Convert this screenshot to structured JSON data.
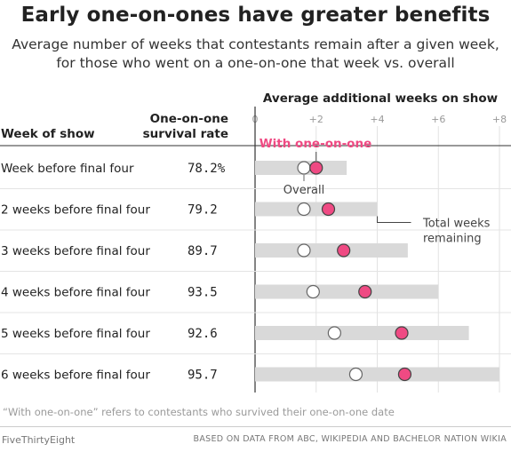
{
  "title": "Early one-on-ones have greater benefits",
  "subtitle": "Average number of weeks that contestants remain after a given week, for those who went on a one-on-one that week vs. overall",
  "columns": {
    "week_header": "Week of show",
    "rate_header_line1": "One-on-one",
    "rate_header_line2": "survival rate"
  },
  "chart_data": {
    "type": "dot-range",
    "title": "Average additional weeks on show",
    "xlim": [
      0,
      8
    ],
    "xticks": [
      {
        "value": 0,
        "label": "0"
      },
      {
        "value": 2,
        "label": "+2"
      },
      {
        "value": 4,
        "label": "+4"
      },
      {
        "value": 6,
        "label": "+6"
      },
      {
        "value": 8,
        "label": "+8"
      }
    ],
    "rows": [
      {
        "week": "Week before final four",
        "rate": "78.2%",
        "total": 3.0,
        "overall": 1.6,
        "one_on_one": 2.0
      },
      {
        "week": "2 weeks before final four",
        "rate": "79.2",
        "total": 4.0,
        "overall": 1.6,
        "one_on_one": 2.4
      },
      {
        "week": "3 weeks before final four",
        "rate": "89.7",
        "total": 5.0,
        "overall": 1.6,
        "one_on_one": 2.9
      },
      {
        "week": "4 weeks before final four",
        "rate": "93.5",
        "total": 6.0,
        "overall": 1.9,
        "one_on_one": 3.6
      },
      {
        "week": "5 weeks before final four",
        "rate": "92.6",
        "total": 7.0,
        "overall": 2.6,
        "one_on_one": 4.8
      },
      {
        "week": "6 weeks before final four",
        "rate": "95.7",
        "total": 8.0,
        "overall": 3.3,
        "one_on_one": 4.9
      }
    ],
    "annotations": {
      "with_one_on_one": "With one-on-one",
      "overall": "Overall",
      "total_line1": "Total weeks",
      "total_line2": "remaining"
    },
    "colors": {
      "one_on_one": "#ef4a83",
      "overall": "#ffffff",
      "bar": "#d9d9d9",
      "grid": "#dddddd"
    }
  },
  "footnote": "“With one-on-one” refers to contestants who survived their one-on-one date",
  "brand": "FiveThirtyEight",
  "source": "BASED ON DATA FROM ABC, WIKIPEDIA AND BACHELOR NATION WIKIA"
}
